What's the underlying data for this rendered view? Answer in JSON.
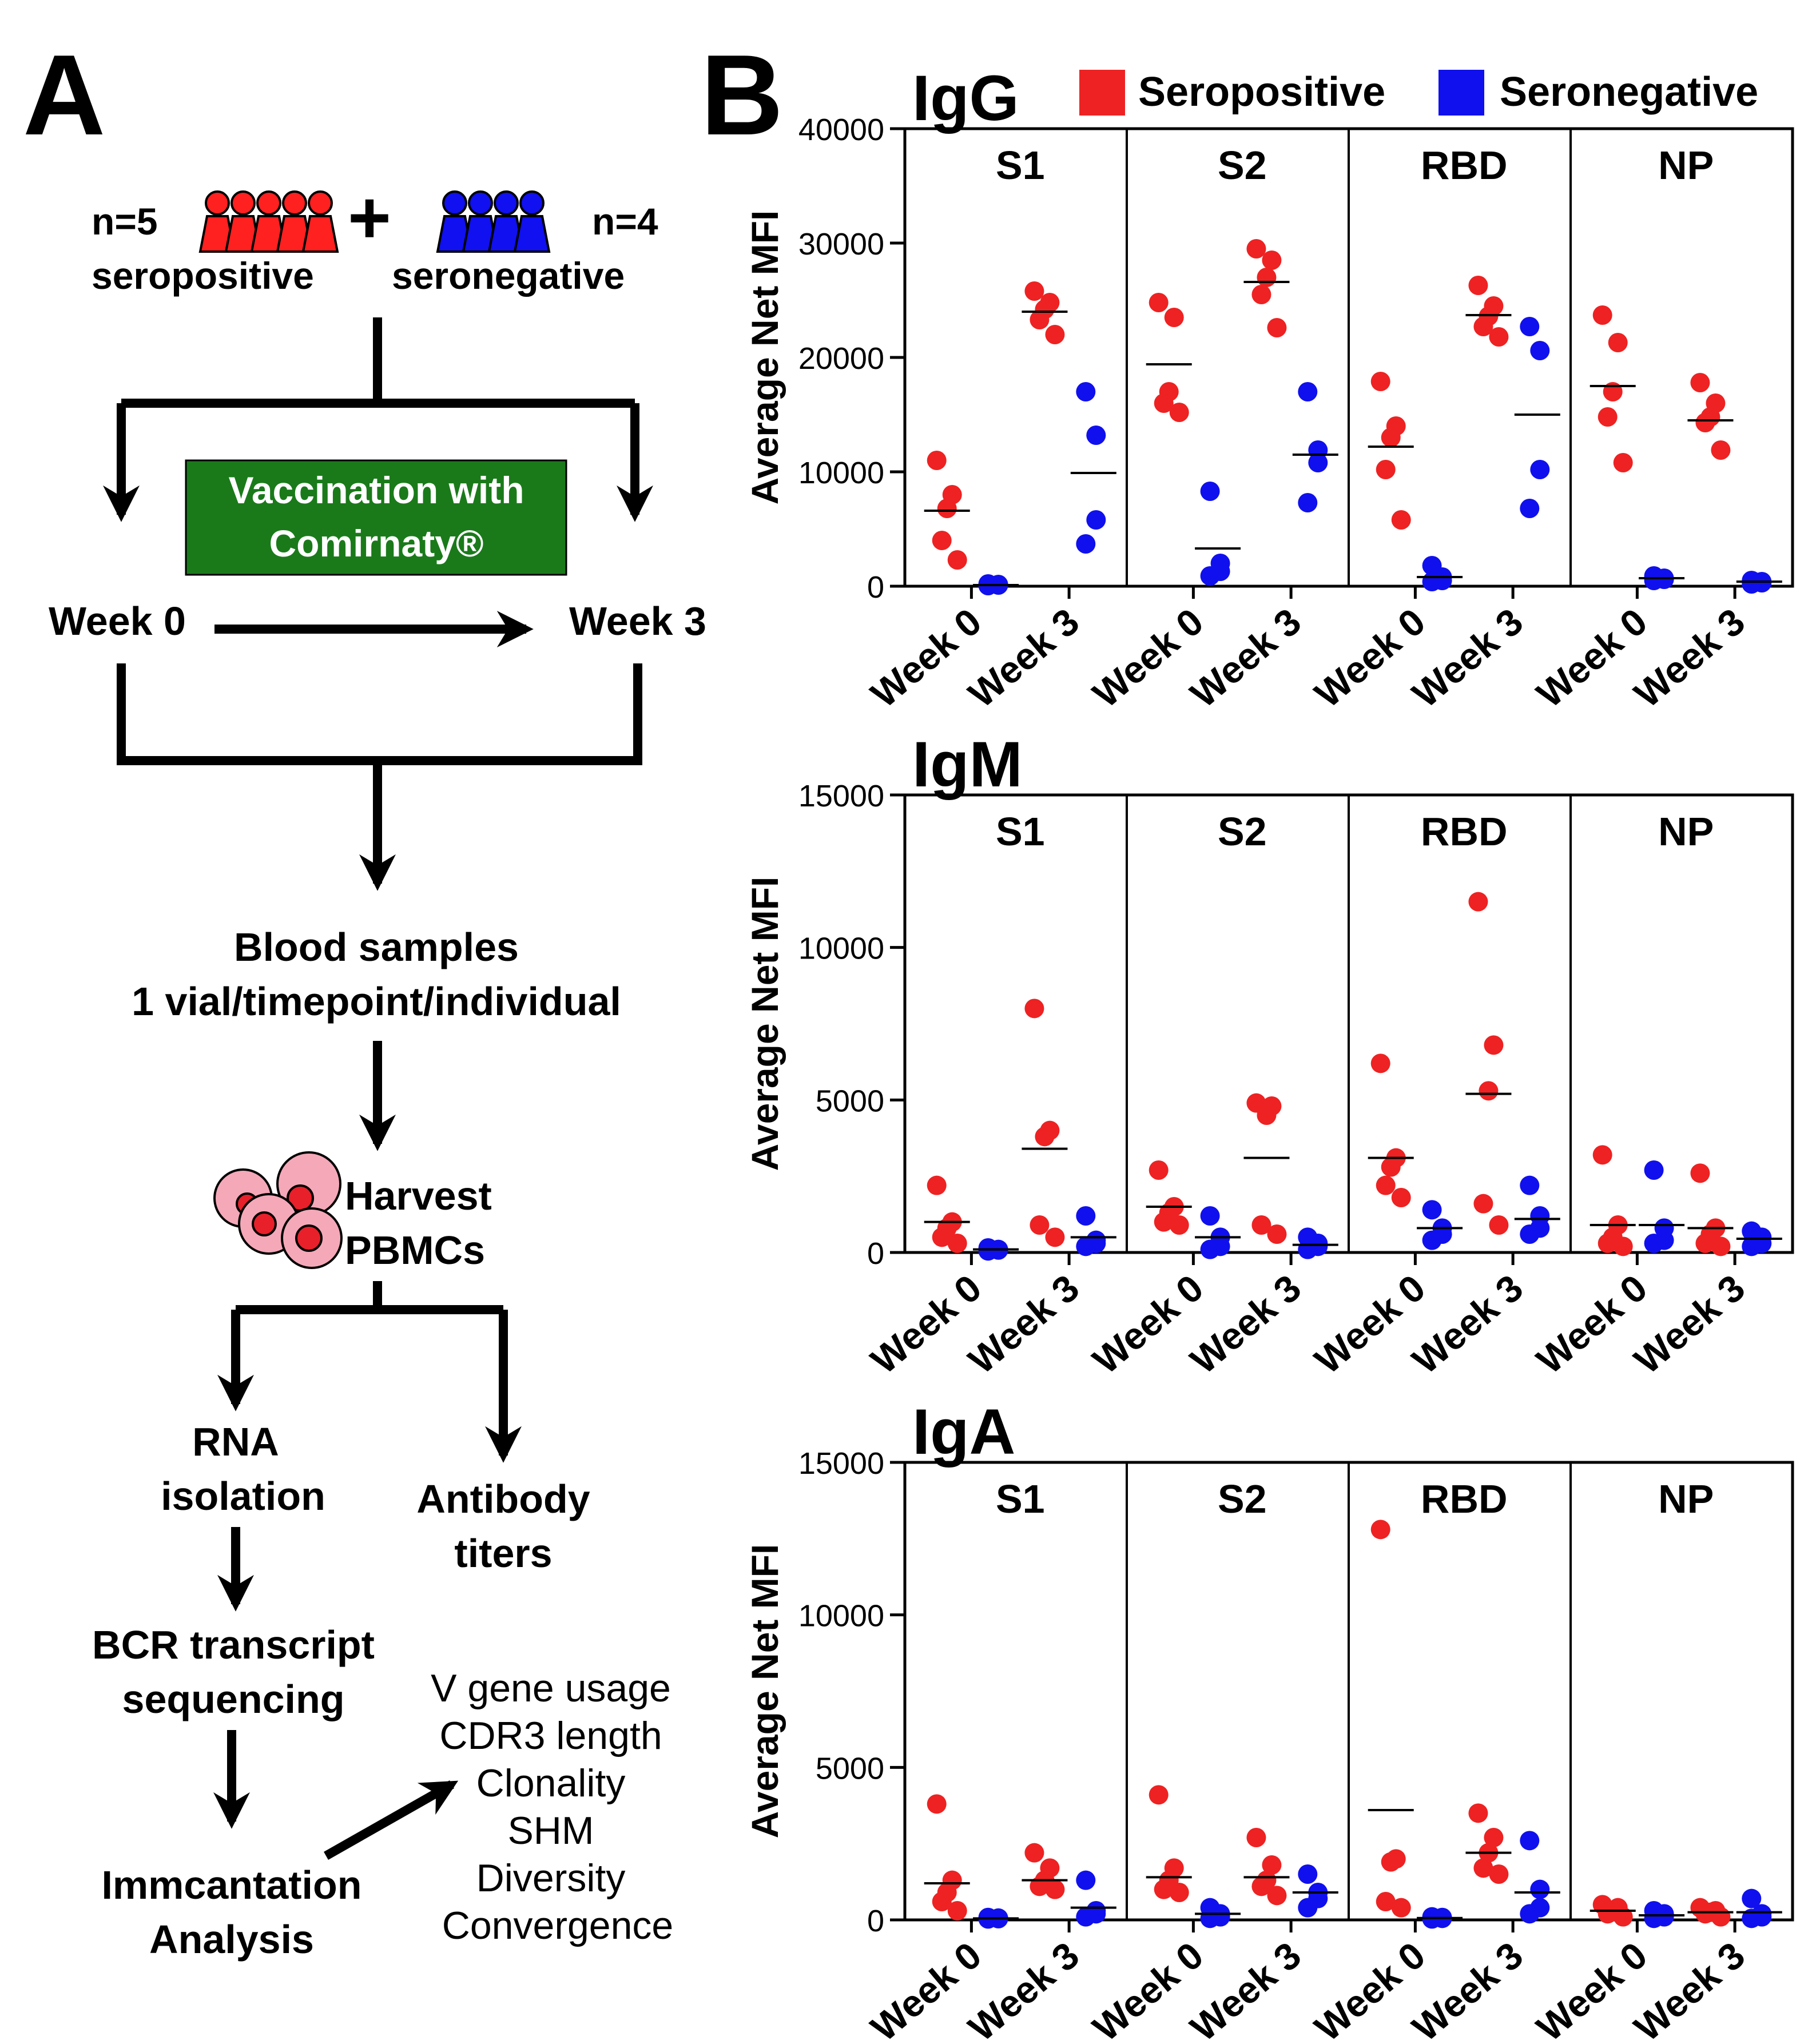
{
  "panel_a": {
    "label": "A",
    "seropositive_n": "n=5",
    "seropositive_label": "seropositive",
    "seronegative_n": "n=4",
    "seronegative_label": "seronegative",
    "plus": "+",
    "vaccination_line1": "Vaccination with",
    "vaccination_line2": "Comirnaty®",
    "week0": "Week 0",
    "week3": "Week 3",
    "blood_line1": "Blood samples",
    "blood_line2": "1 vial/timepoint/individual",
    "harvest_line1": "Harvest",
    "harvest_line2": "PBMCs",
    "rna_line1": "RNA",
    "rna_line2": "isolation",
    "antibody_line1": "Antibody",
    "antibody_line2": "titers",
    "bcr_line1": "BCR transcript",
    "bcr_line2": "sequencing",
    "immcantation_line1": "Immcantation",
    "immcantation_line2": "Analysis",
    "outputs": [
      "V gene usage",
      "CDR3 length",
      "Clonality",
      "SHM",
      "Diversity",
      "Convergence"
    ],
    "colors": {
      "seropositive": "#ff2020",
      "seronegative": "#1010f0",
      "vaccine_box": "#1a7a1a",
      "cell": "#f5a8b8",
      "nucleus": "#e8202a"
    }
  },
  "panel_b": {
    "label": "B",
    "legend": [
      {
        "name": "Seropositive",
        "color": "#ee2222"
      },
      {
        "name": "Seronegative",
        "color": "#1010ee"
      }
    ]
  },
  "chart_data": [
    {
      "type": "scatter",
      "title": "IgG",
      "ylabel": "Average Net MFI",
      "ylim": [
        0,
        40000
      ],
      "yticks": [
        "0",
        "10000",
        "20000",
        "30000",
        "40000"
      ],
      "facets": [
        "S1",
        "S2",
        "RBD",
        "NP"
      ],
      "categories": [
        "Week 0",
        "Week 3"
      ],
      "groups": [
        {
          "facet": "S1",
          "week": "Week 0",
          "series": "Seropositive",
          "values": [
            11000,
            8000,
            6800,
            4000,
            2300
          ],
          "mean": 6600
        },
        {
          "facet": "S1",
          "week": "Week 0",
          "series": "Seronegative",
          "values": [
            200,
            100,
            150,
            50
          ],
          "mean": 100
        },
        {
          "facet": "S1",
          "week": "Week 3",
          "series": "Seropositive",
          "values": [
            25800,
            24800,
            24200,
            23300,
            22000
          ],
          "mean": 24000
        },
        {
          "facet": "S1",
          "week": "Week 3",
          "series": "Seronegative",
          "values": [
            17000,
            13200,
            5800,
            3700
          ],
          "mean": 9900
        },
        {
          "facet": "S2",
          "week": "Week 0",
          "series": "Seropositive",
          "values": [
            24800,
            23500,
            17000,
            16000,
            15200
          ],
          "mean": 19400
        },
        {
          "facet": "S2",
          "week": "Week 0",
          "series": "Seronegative",
          "values": [
            8300,
            2000,
            1300,
            900
          ],
          "mean": 3300
        },
        {
          "facet": "S2",
          "week": "Week 3",
          "series": "Seropositive",
          "values": [
            29500,
            28500,
            27000,
            25500,
            22600
          ],
          "mean": 26600
        },
        {
          "facet": "S2",
          "week": "Week 3",
          "series": "Seronegative",
          "values": [
            17000,
            11900,
            10800,
            7300
          ],
          "mean": 11500
        },
        {
          "facet": "RBD",
          "week": "Week 0",
          "series": "Seropositive",
          "values": [
            17900,
            14000,
            13000,
            10200,
            5800
          ],
          "mean": 12200
        },
        {
          "facet": "RBD",
          "week": "Week 0",
          "series": "Seronegative",
          "values": [
            1800,
            800,
            500,
            400
          ],
          "mean": 800
        },
        {
          "facet": "RBD",
          "week": "Week 3",
          "series": "Seropositive",
          "values": [
            26300,
            24500,
            23600,
            22700,
            21800
          ],
          "mean": 23700
        },
        {
          "facet": "RBD",
          "week": "Week 3",
          "series": "Seronegative",
          "values": [
            22700,
            20600,
            10200,
            6800
          ],
          "mean": 15000
        },
        {
          "facet": "NP",
          "week": "Week 0",
          "series": "Seropositive",
          "values": [
            23700,
            21300,
            17000,
            14800,
            10800
          ],
          "mean": 17500
        },
        {
          "facet": "NP",
          "week": "Week 0",
          "series": "Seronegative",
          "values": [
            900,
            700,
            600,
            500
          ],
          "mean": 700
        },
        {
          "facet": "NP",
          "week": "Week 3",
          "series": "Seropositive",
          "values": [
            17800,
            16000,
            14800,
            14300,
            11900
          ],
          "mean": 14500
        },
        {
          "facet": "NP",
          "week": "Week 3",
          "series": "Seronegative",
          "values": [
            500,
            400,
            300,
            200
          ],
          "mean": 400
        }
      ]
    },
    {
      "type": "scatter",
      "title": "IgM",
      "ylabel": "Average Net MFI",
      "ylim": [
        0,
        15000
      ],
      "yticks": [
        "0",
        "5000",
        "10000",
        "15000"
      ],
      "facets": [
        "S1",
        "S2",
        "RBD",
        "NP"
      ],
      "categories": [
        "Week 0",
        "Week 3"
      ],
      "groups": [
        {
          "facet": "S1",
          "week": "Week 0",
          "series": "Seropositive",
          "values": [
            2200,
            1000,
            800,
            500,
            300
          ],
          "mean": 1000
        },
        {
          "facet": "S1",
          "week": "Week 0",
          "series": "Seronegative",
          "values": [
            150,
            100,
            80,
            50
          ],
          "mean": 100
        },
        {
          "facet": "S1",
          "week": "Week 3",
          "series": "Seropositive",
          "values": [
            8000,
            4000,
            3800,
            900,
            500
          ],
          "mean": 3400
        },
        {
          "facet": "S1",
          "week": "Week 3",
          "series": "Seronegative",
          "values": [
            1200,
            400,
            300,
            200
          ],
          "mean": 500
        },
        {
          "facet": "S2",
          "week": "Week 0",
          "series": "Seropositive",
          "values": [
            2700,
            1500,
            1300,
            1000,
            900
          ],
          "mean": 1500
        },
        {
          "facet": "S2",
          "week": "Week 0",
          "series": "Seronegative",
          "values": [
            1200,
            500,
            200,
            100
          ],
          "mean": 500
        },
        {
          "facet": "S2",
          "week": "Week 3",
          "series": "Seropositive",
          "values": [
            4900,
            4800,
            4500,
            900,
            600
          ],
          "mean": 3100
        },
        {
          "facet": "S2",
          "week": "Week 3",
          "series": "Seronegative",
          "values": [
            500,
            300,
            200,
            100
          ],
          "mean": 250
        },
        {
          "facet": "RBD",
          "week": "Week 0",
          "series": "Seropositive",
          "values": [
            6200,
            3100,
            2800,
            2200,
            1800
          ],
          "mean": 3100
        },
        {
          "facet": "RBD",
          "week": "Week 0",
          "series": "Seronegative",
          "values": [
            1400,
            800,
            600,
            400
          ],
          "mean": 800
        },
        {
          "facet": "RBD",
          "week": "Week 3",
          "series": "Seropositive",
          "values": [
            11500,
            6800,
            5300,
            1600,
            900
          ],
          "mean": 5200
        },
        {
          "facet": "RBD",
          "week": "Week 3",
          "series": "Seronegative",
          "values": [
            2200,
            1200,
            800,
            600
          ],
          "mean": 1100
        },
        {
          "facet": "NP",
          "week": "Week 0",
          "series": "Seropositive",
          "values": [
            3200,
            900,
            500,
            300,
            200
          ],
          "mean": 900
        },
        {
          "facet": "NP",
          "week": "Week 0",
          "series": "Seronegative",
          "values": [
            2700,
            800,
            400,
            300
          ],
          "mean": 900
        },
        {
          "facet": "NP",
          "week": "Week 3",
          "series": "Seropositive",
          "values": [
            2600,
            800,
            600,
            300,
            200
          ],
          "mean": 800
        },
        {
          "facet": "NP",
          "week": "Week 3",
          "series": "Seronegative",
          "values": [
            700,
            500,
            300,
            200
          ],
          "mean": 450
        }
      ]
    },
    {
      "type": "scatter",
      "title": "IgA",
      "ylabel": "Average Net MFI",
      "ylim": [
        0,
        15000
      ],
      "yticks": [
        "0",
        "5000",
        "10000",
        "15000"
      ],
      "facets": [
        "S1",
        "S2",
        "RBD",
        "NP"
      ],
      "categories": [
        "Week 0",
        "Week 3"
      ],
      "groups": [
        {
          "facet": "S1",
          "week": "Week 0",
          "series": "Seropositive",
          "values": [
            3800,
            1300,
            900,
            600,
            300
          ],
          "mean": 1200
        },
        {
          "facet": "S1",
          "week": "Week 0",
          "series": "Seronegative",
          "values": [
            80,
            60,
            40,
            30
          ],
          "mean": 50
        },
        {
          "facet": "S1",
          "week": "Week 3",
          "series": "Seropositive",
          "values": [
            2200,
            1700,
            1300,
            1100,
            1000
          ],
          "mean": 1300
        },
        {
          "facet": "S1",
          "week": "Week 3",
          "series": "Seronegative",
          "values": [
            1300,
            300,
            200,
            100
          ],
          "mean": 400
        },
        {
          "facet": "S2",
          "week": "Week 0",
          "series": "Seropositive",
          "values": [
            4100,
            1700,
            1300,
            1000,
            900
          ],
          "mean": 1400
        },
        {
          "facet": "S2",
          "week": "Week 0",
          "series": "Seronegative",
          "values": [
            400,
            200,
            100,
            50
          ],
          "mean": 200
        },
        {
          "facet": "S2",
          "week": "Week 3",
          "series": "Seropositive",
          "values": [
            2700,
            1800,
            1300,
            1100,
            800
          ],
          "mean": 1400
        },
        {
          "facet": "S2",
          "week": "Week 3",
          "series": "Seronegative",
          "values": [
            1500,
            900,
            700,
            400
          ],
          "mean": 900
        },
        {
          "facet": "RBD",
          "week": "Week 0",
          "series": "Seropositive",
          "values": [
            12800,
            2000,
            1900,
            600,
            400
          ],
          "mean": 3600
        },
        {
          "facet": "RBD",
          "week": "Week 0",
          "series": "Seronegative",
          "values": [
            100,
            80,
            50,
            30
          ],
          "mean": 60
        },
        {
          "facet": "RBD",
          "week": "Week 3",
          "series": "Seropositive",
          "values": [
            3500,
            2700,
            2200,
            1700,
            1500
          ],
          "mean": 2200
        },
        {
          "facet": "RBD",
          "week": "Week 3",
          "series": "Seronegative",
          "values": [
            2600,
            1000,
            400,
            200
          ],
          "mean": 900
        },
        {
          "facet": "NP",
          "week": "Week 0",
          "series": "Seropositive",
          "values": [
            500,
            400,
            300,
            200,
            100
          ],
          "mean": 300
        },
        {
          "facet": "NP",
          "week": "Week 0",
          "series": "Seronegative",
          "values": [
            300,
            200,
            100,
            50
          ],
          "mean": 150
        },
        {
          "facet": "NP",
          "week": "Week 3",
          "series": "Seropositive",
          "values": [
            400,
            300,
            250,
            200,
            100
          ],
          "mean": 250
        },
        {
          "facet": "NP",
          "week": "Week 3",
          "series": "Seronegative",
          "values": [
            700,
            200,
            100,
            50
          ],
          "mean": 250
        }
      ]
    }
  ]
}
